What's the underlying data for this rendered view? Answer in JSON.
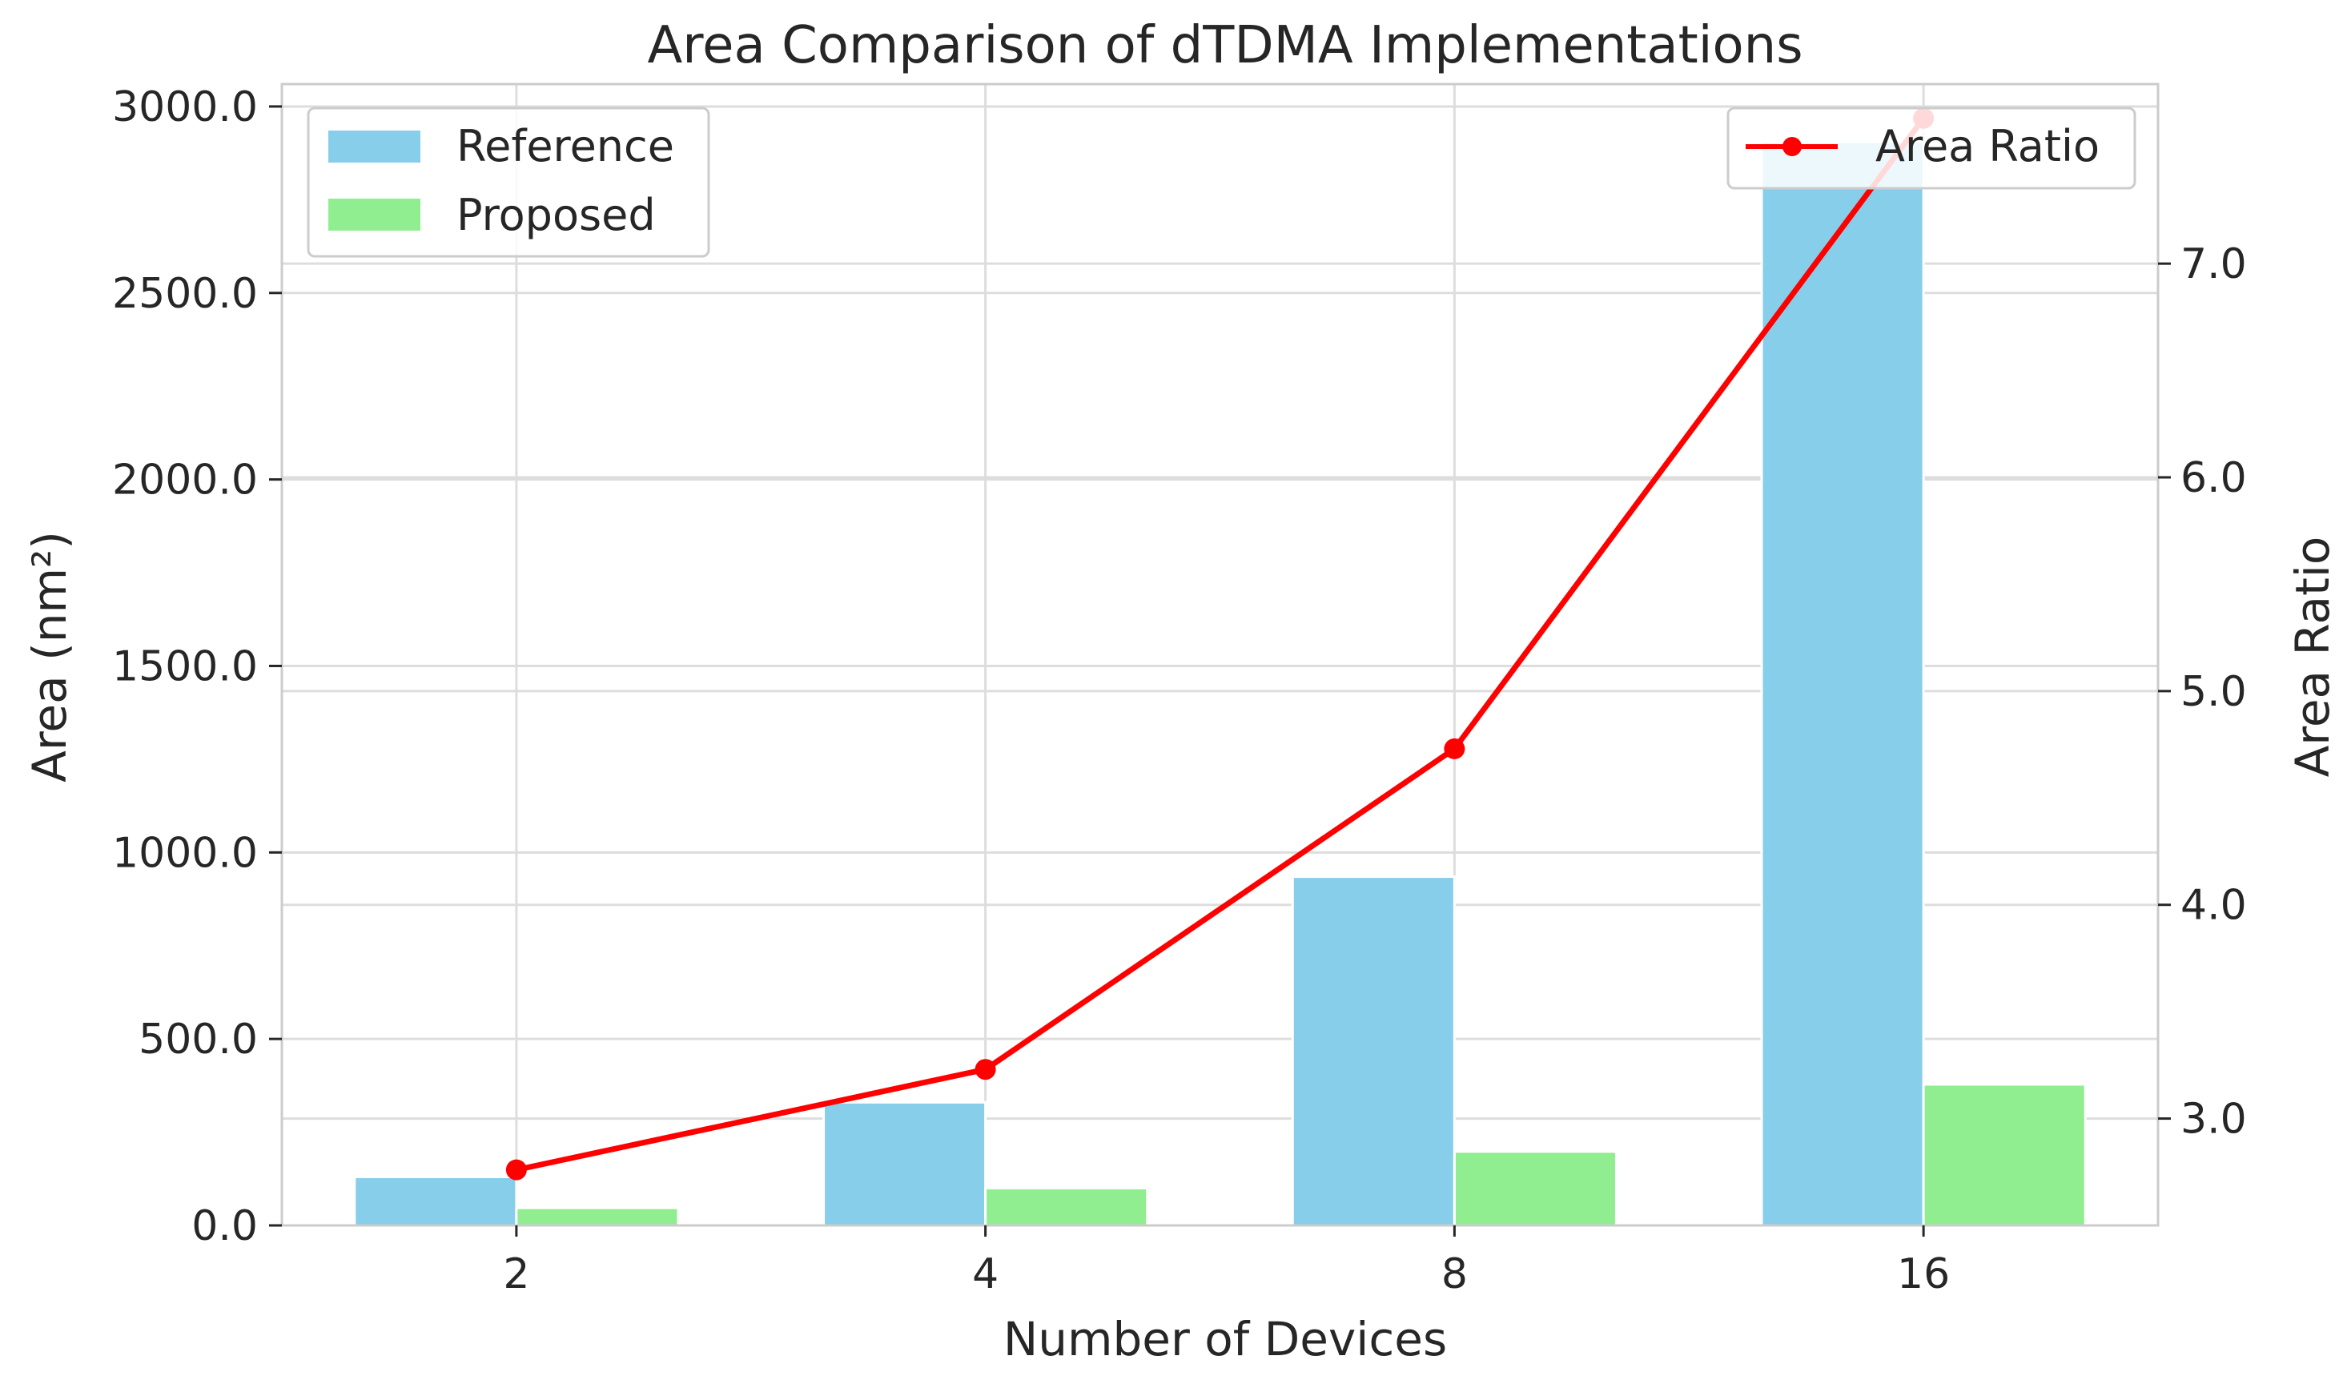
{
  "chart_data": {
    "type": "bar",
    "title": "Area Comparison of dTDMA Implementations",
    "xlabel": "Number of Devices",
    "ylabel": "Area (nm²)",
    "y2label": "Area Ratio",
    "categories": [
      "2",
      "4",
      "8",
      "16"
    ],
    "ylim": [
      0,
      3060
    ],
    "y2lim": [
      2.5,
      7.84
    ],
    "yticks": [
      "0.0",
      "500.0",
      "1000.0",
      "1500.0",
      "2000.0",
      "2500.0",
      "3000.0"
    ],
    "y2ticks": [
      "3.0",
      "4.0",
      "5.0",
      "6.0",
      "7.0"
    ],
    "series": [
      {
        "name": "Reference",
        "type": "bar",
        "color": "#87CEEB",
        "values": [
          130,
          330,
          935,
          2905
        ]
      },
      {
        "name": "Proposed",
        "type": "bar",
        "color": "#90EE90",
        "values": [
          47,
          100,
          198,
          378
        ]
      },
      {
        "name": "Area Ratio",
        "type": "line",
        "axis": "right",
        "color": "#ff0000",
        "values": [
          2.76,
          3.23,
          4.73,
          7.68
        ]
      }
    ],
    "legend_left": [
      "Reference",
      "Proposed"
    ],
    "legend_right": [
      "Area Ratio"
    ],
    "legend_left_position": "top-left",
    "legend_right_position": "top-right",
    "grid": true
  }
}
